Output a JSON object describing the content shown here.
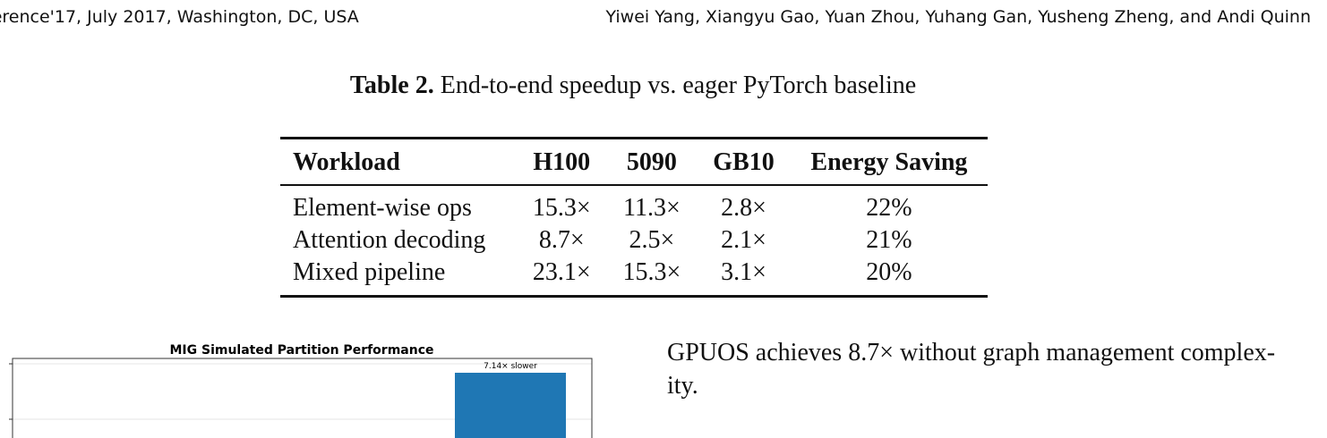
{
  "header": {
    "left": "ference'17, July 2017, Washington, DC, USA",
    "right": "Yiwei Yang, Xiangyu Gao, Yuan Zhou, Yuhang Gan, Yusheng Zheng, and Andi Quinn"
  },
  "table": {
    "caption_label": "Table 2.",
    "caption_text": "End-to-end speedup vs. eager PyTorch baseline",
    "columns": [
      "Workload",
      "H100",
      "5090",
      "GB10",
      "Energy Saving"
    ],
    "rows": [
      [
        "Element-wise ops",
        "15.3×",
        "11.3×",
        "2.8×",
        "22%"
      ],
      [
        "Attention decoding",
        "8.7×",
        "2.5×",
        "2.1×",
        "21%"
      ],
      [
        "Mixed pipeline",
        "23.1×",
        "15.3×",
        "3.1×",
        "20%"
      ]
    ]
  },
  "chart_data": {
    "type": "bar",
    "title": "MIG Simulated Partition Performance",
    "annotation": "7.14× slower",
    "visible_bar_color": "#1f77b4",
    "grid": true
  },
  "body_text": {
    "line1": "GPUOS achieves 8.7× without graph management complex-",
    "line2": "ity."
  }
}
